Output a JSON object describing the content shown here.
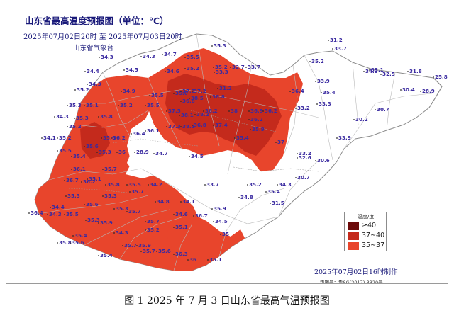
{
  "map": {
    "title": "山东省最高温度预报图（单位：℃）",
    "date_range": "2025年07月02日20时  至  2025年07月03日20时",
    "issuer": "山东省气象台",
    "made": "2025年07月02日16时制作",
    "approval": "审图号：鲁SG(2017)-3320号",
    "legend": {
      "title": "温度/度",
      "items": [
        {
          "label": "≥40",
          "color": "#6b0a0a"
        },
        {
          "label": "37~40",
          "color": "#c42a1c"
        },
        {
          "label": "35~37",
          "color": "#e8452c"
        }
      ]
    },
    "colors": {
      "hot_35_37": "#e8452c",
      "hot_37_40": "#c42a1c",
      "below_35": "#ffffff",
      "boundary": "#9b9b9b",
      "value_text": "#3a2aa0"
    }
  },
  "caption": "图 1   2025 年 7 月 3 日山东省最高气温预报图",
  "temperature_labels": [
    {
      "v": "34.3"
    },
    {
      "v": "34.3"
    },
    {
      "v": "34.7"
    },
    {
      "v": "35.5"
    },
    {
      "v": "35.3"
    },
    {
      "v": "34.4"
    },
    {
      "v": "34.5"
    },
    {
      "v": "34.6"
    },
    {
      "v": "35.2"
    },
    {
      "v": "35.2"
    },
    {
      "v": "33.3"
    },
    {
      "v": "32.7"
    },
    {
      "v": "33.7"
    },
    {
      "v": "34.3"
    },
    {
      "v": "31.2"
    },
    {
      "v": "35.2"
    },
    {
      "v": "34.9"
    },
    {
      "v": "35.5"
    },
    {
      "v": "35.6"
    },
    {
      "v": "37.3"
    },
    {
      "v": "37.2"
    },
    {
      "v": "38.5"
    },
    {
      "v": "36.8"
    },
    {
      "v": "36.8"
    },
    {
      "v": "36.4"
    },
    {
      "v": "35.3"
    },
    {
      "v": "35.1"
    },
    {
      "v": "35.2"
    },
    {
      "v": "35.5"
    },
    {
      "v": "37.5"
    },
    {
      "v": "38.1"
    },
    {
      "v": "38.2"
    },
    {
      "v": "38.2"
    },
    {
      "v": "38"
    },
    {
      "v": "36.9"
    },
    {
      "v": "36.2"
    },
    {
      "v": "34.3"
    },
    {
      "v": "35.8"
    },
    {
      "v": "35.3"
    },
    {
      "v": "35.2"
    },
    {
      "v": "37.3"
    },
    {
      "v": "38.1"
    },
    {
      "v": "36.8"
    },
    {
      "v": "37.4"
    },
    {
      "v": "36.2"
    },
    {
      "v": "35.9"
    },
    {
      "v": "34.1"
    },
    {
      "v": "35.2"
    },
    {
      "v": "35.6"
    },
    {
      "v": "35.6"
    },
    {
      "v": "36.4"
    },
    {
      "v": "36.2"
    },
    {
      "v": "36.1"
    },
    {
      "v": "35.4"
    },
    {
      "v": "37"
    },
    {
      "v": "35.5"
    },
    {
      "v": "35.4"
    },
    {
      "v": "35.3"
    },
    {
      "v": "36"
    },
    {
      "v": "28.9"
    },
    {
      "v": "34.7"
    },
    {
      "v": "34.5"
    },
    {
      "v": "36.1"
    },
    {
      "v": "35.1"
    },
    {
      "v": "35.7"
    },
    {
      "v": "36.2"
    },
    {
      "v": "36.7"
    },
    {
      "v": "35.8"
    },
    {
      "v": "35.5"
    },
    {
      "v": "34.2"
    },
    {
      "v": "33.7"
    },
    {
      "v": "35.2"
    },
    {
      "v": "34.3"
    },
    {
      "v": "35.7"
    },
    {
      "v": "35.3"
    },
    {
      "v": "35.3"
    },
    {
      "v": "34.8"
    },
    {
      "v": "34.1"
    },
    {
      "v": "34.3"
    },
    {
      "v": "34.4"
    },
    {
      "v": "34.6"
    },
    {
      "v": "36.7"
    },
    {
      "v": "35.1"
    },
    {
      "v": "35.9"
    },
    {
      "v": "34.5"
    },
    {
      "v": "35.4"
    },
    {
      "v": "34.8"
    },
    {
      "v": "31.5"
    },
    {
      "v": "36.4"
    },
    {
      "v": "35.5"
    },
    {
      "v": "35.6"
    },
    {
      "v": "35.3"
    },
    {
      "v": "35.9"
    },
    {
      "v": "35.3"
    },
    {
      "v": "35.7"
    },
    {
      "v": "35.7"
    },
    {
      "v": "35.2"
    },
    {
      "v": "34.3"
    },
    {
      "v": "35.4"
    },
    {
      "v": "35"
    },
    {
      "v": "35.8"
    },
    {
      "v": "35.6"
    },
    {
      "v": "35.4"
    },
    {
      "v": "35.7"
    },
    {
      "v": "35.9"
    },
    {
      "v": "35.7"
    },
    {
      "v": "35.6"
    },
    {
      "v": "36.3"
    },
    {
      "v": "36"
    },
    {
      "v": "35.1"
    },
    {
      "v": "31.2"
    },
    {
      "v": "33.7"
    },
    {
      "v": "35.2"
    },
    {
      "v": "34.3"
    },
    {
      "v": "33.1"
    },
    {
      "v": "32.5"
    },
    {
      "v": "31.8"
    },
    {
      "v": "25.8"
    },
    {
      "v": "33.9"
    },
    {
      "v": "35.4"
    },
    {
      "v": "30.4"
    },
    {
      "v": "28.9"
    },
    {
      "v": "33.3"
    },
    {
      "v": "33.2"
    },
    {
      "v": "30.2"
    },
    {
      "v": "30.7"
    },
    {
      "v": "33.2"
    },
    {
      "v": "32.6"
    },
    {
      "v": "30.6"
    },
    {
      "v": "30.7"
    },
    {
      "v": "33.9"
    }
  ]
}
